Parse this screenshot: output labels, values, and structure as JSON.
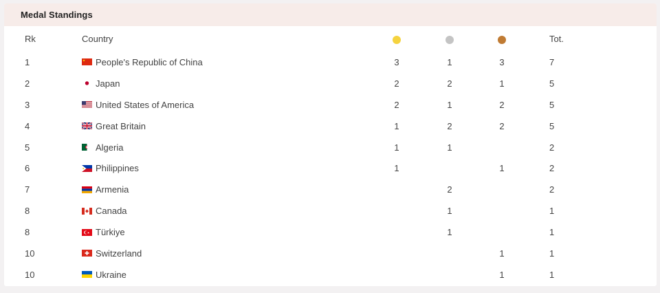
{
  "panel": {
    "title": "Medal Standings"
  },
  "colors": {
    "page_bg": "#f3f1f2",
    "card_bg": "#ffffff",
    "header_bg": "#f7ece9",
    "title_color": "#212121",
    "text_color": "#424242"
  },
  "table": {
    "columns": {
      "rank": "Rk",
      "country": "Country",
      "gold_icon": "gold-medal",
      "silver_icon": "silver-medal",
      "bronze_icon": "bronze-medal",
      "total": "Tot."
    },
    "medal_colors": {
      "gold": "#f5d33f",
      "silver": "#c4c4c4",
      "bronze": "#c07b33"
    },
    "rows": [
      {
        "rank": "1",
        "country": "People's Republic of China",
        "flag": "cn",
        "gold": "3",
        "silver": "1",
        "bronze": "3",
        "total": "7"
      },
      {
        "rank": "2",
        "country": "Japan",
        "flag": "jp",
        "gold": "2",
        "silver": "2",
        "bronze": "1",
        "total": "5"
      },
      {
        "rank": "3",
        "country": "United States of America",
        "flag": "us",
        "gold": "2",
        "silver": "1",
        "bronze": "2",
        "total": "5"
      },
      {
        "rank": "4",
        "country": "Great Britain",
        "flag": "gb",
        "gold": "1",
        "silver": "2",
        "bronze": "2",
        "total": "5"
      },
      {
        "rank": "5",
        "country": "Algeria",
        "flag": "dz",
        "gold": "1",
        "silver": "1",
        "bronze": "",
        "total": "2"
      },
      {
        "rank": "6",
        "country": "Philippines",
        "flag": "ph",
        "gold": "1",
        "silver": "",
        "bronze": "1",
        "total": "2"
      },
      {
        "rank": "7",
        "country": "Armenia",
        "flag": "am",
        "gold": "",
        "silver": "2",
        "bronze": "",
        "total": "2"
      },
      {
        "rank": "8",
        "country": "Canada",
        "flag": "ca",
        "gold": "",
        "silver": "1",
        "bronze": "",
        "total": "1"
      },
      {
        "rank": "8",
        "country": "Türkiye",
        "flag": "tr",
        "gold": "",
        "silver": "1",
        "bronze": "",
        "total": "1"
      },
      {
        "rank": "10",
        "country": "Switzerland",
        "flag": "ch",
        "gold": "",
        "silver": "",
        "bronze": "1",
        "total": "1"
      },
      {
        "rank": "10",
        "country": "Ukraine",
        "flag": "ua",
        "gold": "",
        "silver": "",
        "bronze": "1",
        "total": "1"
      }
    ]
  }
}
